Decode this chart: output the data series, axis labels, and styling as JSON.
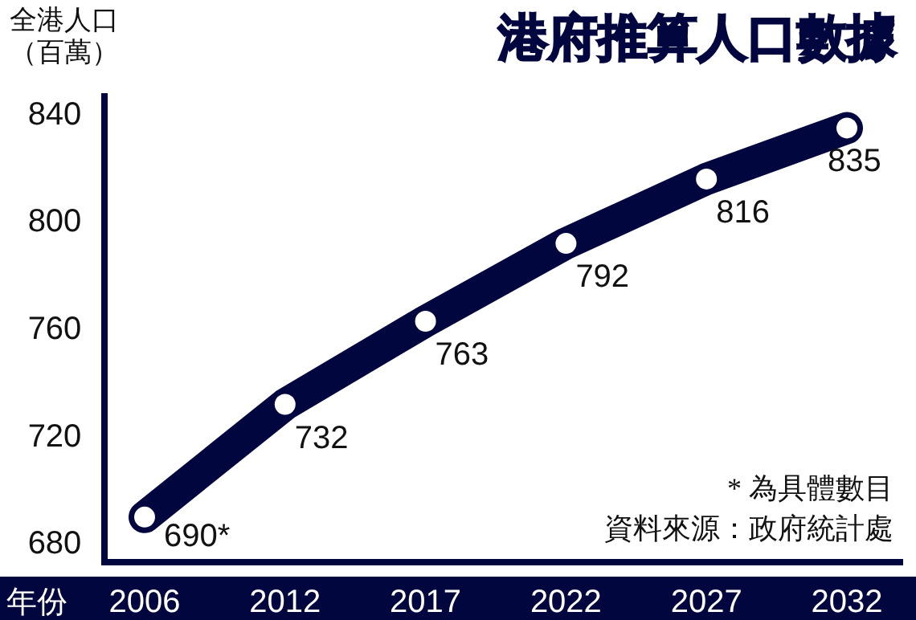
{
  "chart_data": {
    "type": "line",
    "title": "港府推算人口數據",
    "ylabel": "全港人口（百萬）",
    "xlabel": "年份",
    "categories": [
      "2006",
      "2012",
      "2017",
      "2022",
      "2027",
      "2032"
    ],
    "series": [
      {
        "color": "#02063f",
        "values": [
          690,
          732,
          763,
          792,
          816,
          835
        ],
        "value_labels": [
          "690*",
          "732",
          "763",
          "792",
          "816",
          "835"
        ]
      }
    ],
    "ylim": [
      672,
      848
    ],
    "yticks": [
      680,
      720,
      760,
      800,
      840
    ],
    "marker": "circle",
    "line_style": "solid",
    "annotations": [
      "* 為具體數目",
      "資料來源：政府統計處"
    ]
  }
}
